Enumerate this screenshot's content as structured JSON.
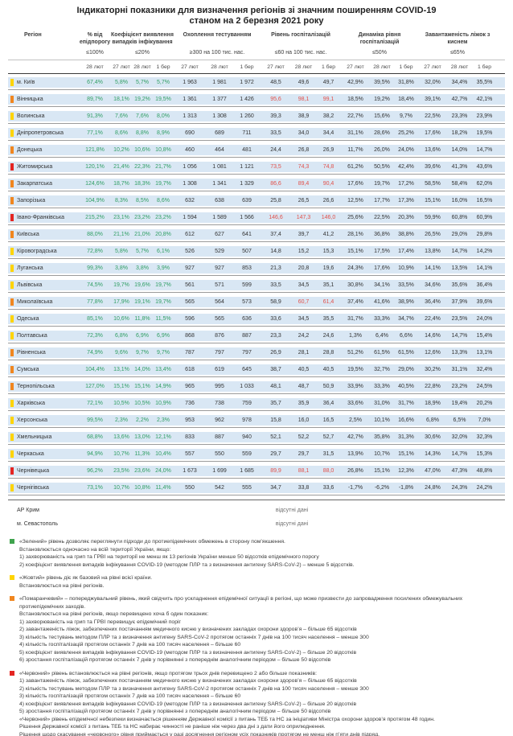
{
  "title": {
    "line1": "Індикаторні показники для визначення регіонів зі значним поширенням COVID-19",
    "line2": "станом на 2 березня 2021 року"
  },
  "colors": {
    "row_band": "#d9e7f4",
    "value_green": "#2f9e63",
    "value_alert_red": "#e2514b",
    "level_yellow": "#ffd400",
    "level_orange": "#f0861f",
    "level_red": "#e42522",
    "level_green": "#3fa34d"
  },
  "table": {
    "region_header": "Регіон",
    "no_data_note": "відсутні дані",
    "groups": [
      {
        "label": "% від епідпорогу",
        "threshold": "≤100%",
        "dates": [
          "28 лют"
        ]
      },
      {
        "label": "Коефіцієнт виявлення випадків інфікування",
        "threshold": "≤20%",
        "dates": [
          "27 лют",
          "28 лют",
          "1 бер"
        ]
      },
      {
        "label": "Охоплення тестуванням",
        "threshold": "≥300 на 100 тис. нас.",
        "dates": [
          "27 лют",
          "28 лют",
          "1 бер"
        ]
      },
      {
        "label": "Рівень госпіталізацій",
        "threshold": "≤60 на 100 тис. нас.",
        "dates": [
          "27 лют",
          "28 лют",
          "1 бер"
        ]
      },
      {
        "label": "Динаміка рівня госпіталізацій",
        "threshold": "≤50%",
        "dates": [
          "27 лют",
          "28 лют",
          "1 бер"
        ]
      },
      {
        "label": "Завантаженість ліжок з киснем",
        "threshold": "≤65%",
        "dates": [
          "27 лют",
          "28 лют",
          "1 бер"
        ]
      }
    ],
    "rows": [
      {
        "region": "м. Київ",
        "level": "yellow",
        "epid": "67,4%",
        "coef": [
          "5,8%",
          "5,7%",
          "5,7%"
        ],
        "tests": [
          "1 963",
          "1 981",
          "1 972"
        ],
        "hosp": [
          "48,5",
          "49,6",
          "49,7"
        ],
        "hosp_alert": [
          false,
          false,
          false
        ],
        "dyn": [
          "42,9%",
          "39,5%",
          "31,8%"
        ],
        "oxy": [
          "32,0%",
          "34,4%",
          "35,5%"
        ]
      },
      {
        "region": "Вінницька",
        "level": "orange",
        "epid": "89,7%",
        "coef": [
          "18,1%",
          "19,2%",
          "19,5%"
        ],
        "tests": [
          "1 361",
          "1 377",
          "1 426"
        ],
        "hosp": [
          "95,6",
          "98,1",
          "99,1"
        ],
        "hosp_alert": [
          true,
          true,
          true
        ],
        "dyn": [
          "18,5%",
          "19,2%",
          "18,4%"
        ],
        "oxy": [
          "39,1%",
          "42,7%",
          "42,1%"
        ]
      },
      {
        "region": "Волинська",
        "level": "yellow",
        "epid": "91,3%",
        "coef": [
          "7,6%",
          "7,6%",
          "8,0%"
        ],
        "tests": [
          "1 313",
          "1 308",
          "1 260"
        ],
        "hosp": [
          "39,3",
          "38,9",
          "38,2"
        ],
        "hosp_alert": [
          false,
          false,
          false
        ],
        "dyn": [
          "22,7%",
          "15,6%",
          "9,7%"
        ],
        "oxy": [
          "22,5%",
          "23,3%",
          "23,9%"
        ]
      },
      {
        "region": "Дніпропетровська",
        "level": "yellow",
        "epid": "77,1%",
        "coef": [
          "8,6%",
          "8,8%",
          "8,9%"
        ],
        "tests": [
          "690",
          "689",
          "711"
        ],
        "hosp": [
          "33,5",
          "34,0",
          "34,4"
        ],
        "hosp_alert": [
          false,
          false,
          false
        ],
        "dyn": [
          "31,1%",
          "28,6%",
          "25,2%"
        ],
        "oxy": [
          "17,6%",
          "18,2%",
          "19,5%"
        ]
      },
      {
        "region": "Донецька",
        "level": "orange",
        "epid": "121,8%",
        "coef": [
          "10,2%",
          "10,6%",
          "10,8%"
        ],
        "tests": [
          "460",
          "464",
          "481"
        ],
        "hosp": [
          "24,4",
          "26,8",
          "26,9"
        ],
        "hosp_alert": [
          false,
          false,
          false
        ],
        "dyn": [
          "11,7%",
          "26,0%",
          "24,0%"
        ],
        "oxy": [
          "13,6%",
          "14,0%",
          "14,7%"
        ]
      },
      {
        "region": "Житомирська",
        "level": "red",
        "epid": "120,1%",
        "coef": [
          "21,4%",
          "22,3%",
          "21,7%"
        ],
        "tests": [
          "1 056",
          "1 081",
          "1 121"
        ],
        "hosp": [
          "73,5",
          "74,3",
          "74,8"
        ],
        "hosp_alert": [
          true,
          true,
          true
        ],
        "dyn": [
          "61,2%",
          "50,5%",
          "42,4%"
        ],
        "oxy": [
          "39,6%",
          "41,3%",
          "43,6%"
        ]
      },
      {
        "region": "Закарпатська",
        "level": "orange",
        "epid": "124,6%",
        "coef": [
          "18,7%",
          "18,3%",
          "19,7%"
        ],
        "tests": [
          "1 308",
          "1 341",
          "1 329"
        ],
        "hosp": [
          "86,6",
          "89,4",
          "90,4"
        ],
        "hosp_alert": [
          true,
          true,
          true
        ],
        "dyn": [
          "17,6%",
          "19,7%",
          "17,2%"
        ],
        "oxy": [
          "58,5%",
          "58,4%",
          "62,0%"
        ]
      },
      {
        "region": "Запорізька",
        "level": "orange",
        "epid": "104,9%",
        "coef": [
          "8,3%",
          "8,5%",
          "8,6%"
        ],
        "tests": [
          "632",
          "638",
          "639"
        ],
        "hosp": [
          "25,8",
          "26,5",
          "26,6"
        ],
        "hosp_alert": [
          false,
          false,
          false
        ],
        "dyn": [
          "12,5%",
          "17,7%",
          "17,3%"
        ],
        "oxy": [
          "15,1%",
          "16,0%",
          "16,5%"
        ]
      },
      {
        "region": "Івано-Франківська",
        "level": "red",
        "epid": "215,2%",
        "coef": [
          "23,1%",
          "23,2%",
          "23,2%"
        ],
        "tests": [
          "1 594",
          "1 589",
          "1 566"
        ],
        "hosp": [
          "146,6",
          "147,3",
          "146,0"
        ],
        "hosp_alert": [
          true,
          true,
          true
        ],
        "dyn": [
          "25,6%",
          "22,5%",
          "20,3%"
        ],
        "oxy": [
          "59,9%",
          "60,8%",
          "60,9%"
        ]
      },
      {
        "region": "Київська",
        "level": "orange",
        "epid": "88,0%",
        "coef": [
          "21,1%",
          "21,0%",
          "20,8%"
        ],
        "tests": [
          "612",
          "627",
          "641"
        ],
        "hosp": [
          "37,4",
          "39,7",
          "41,2"
        ],
        "hosp_alert": [
          false,
          false,
          false
        ],
        "dyn": [
          "28,1%",
          "36,8%",
          "38,8%"
        ],
        "oxy": [
          "26,5%",
          "29,0%",
          "29,8%"
        ]
      },
      {
        "region": "Кіровоградська",
        "level": "yellow",
        "epid": "72,8%",
        "coef": [
          "5,8%",
          "5,7%",
          "6,1%"
        ],
        "tests": [
          "526",
          "529",
          "507"
        ],
        "hosp": [
          "14,8",
          "15,2",
          "15,3"
        ],
        "hosp_alert": [
          false,
          false,
          false
        ],
        "dyn": [
          "15,1%",
          "17,5%",
          "17,4%"
        ],
        "oxy": [
          "13,8%",
          "14,7%",
          "14,2%"
        ]
      },
      {
        "region": "Луганська",
        "level": "yellow",
        "epid": "99,3%",
        "coef": [
          "3,8%",
          "3,8%",
          "3,9%"
        ],
        "tests": [
          "927",
          "927",
          "853"
        ],
        "hosp": [
          "21,3",
          "20,8",
          "19,6"
        ],
        "hosp_alert": [
          false,
          false,
          false
        ],
        "dyn": [
          "24,3%",
          "17,6%",
          "10,9%"
        ],
        "oxy": [
          "14,1%",
          "13,5%",
          "14,1%"
        ]
      },
      {
        "region": "Львівська",
        "level": "yellow",
        "epid": "74,5%",
        "coef": [
          "19,7%",
          "19,6%",
          "19,7%"
        ],
        "tests": [
          "561",
          "571",
          "599"
        ],
        "hosp": [
          "33,5",
          "34,5",
          "35,1"
        ],
        "hosp_alert": [
          false,
          false,
          false
        ],
        "dyn": [
          "30,8%",
          "34,1%",
          "33,5%"
        ],
        "oxy": [
          "34,6%",
          "35,6%",
          "36,4%"
        ]
      },
      {
        "region": "Миколаївська",
        "level": "orange",
        "epid": "77,8%",
        "coef": [
          "17,9%",
          "19,1%",
          "19,7%"
        ],
        "tests": [
          "565",
          "564",
          "573"
        ],
        "hosp": [
          "58,9",
          "60,7",
          "61,4"
        ],
        "hosp_alert": [
          false,
          true,
          true
        ],
        "dyn": [
          "37,4%",
          "41,6%",
          "38,9%"
        ],
        "oxy": [
          "36,4%",
          "37,9%",
          "39,6%"
        ]
      },
      {
        "region": "Одеська",
        "level": "yellow",
        "epid": "85,1%",
        "coef": [
          "10,6%",
          "11,8%",
          "11,5%"
        ],
        "tests": [
          "596",
          "565",
          "636"
        ],
        "hosp": [
          "33,6",
          "34,5",
          "35,5"
        ],
        "hosp_alert": [
          false,
          false,
          false
        ],
        "dyn": [
          "31,7%",
          "33,3%",
          "34,7%"
        ],
        "oxy": [
          "22,4%",
          "23,5%",
          "24,0%"
        ]
      },
      {
        "region": "Полтавська",
        "level": "yellow",
        "epid": "72,3%",
        "coef": [
          "6,8%",
          "6,9%",
          "6,9%"
        ],
        "tests": [
          "868",
          "876",
          "887"
        ],
        "hosp": [
          "23,3",
          "24,2",
          "24,6"
        ],
        "hosp_alert": [
          false,
          false,
          false
        ],
        "dyn": [
          "1,3%",
          "6,4%",
          "6,6%"
        ],
        "oxy": [
          "14,6%",
          "14,7%",
          "15,4%"
        ]
      },
      {
        "region": "Рівненська",
        "level": "orange",
        "epid": "74,9%",
        "coef": [
          "9,6%",
          "9,7%",
          "9,7%"
        ],
        "tests": [
          "787",
          "797",
          "797"
        ],
        "hosp": [
          "26,9",
          "28,1",
          "28,8"
        ],
        "hosp_alert": [
          false,
          false,
          false
        ],
        "dyn": [
          "51,2%",
          "61,5%",
          "61,5%"
        ],
        "oxy": [
          "12,6%",
          "13,3%",
          "13,1%"
        ]
      },
      {
        "region": "Сумська",
        "level": "orange",
        "epid": "104,4%",
        "coef": [
          "13,1%",
          "14,0%",
          "13,4%"
        ],
        "tests": [
          "618",
          "619",
          "645"
        ],
        "hosp": [
          "38,7",
          "40,5",
          "40,5"
        ],
        "hosp_alert": [
          false,
          false,
          false
        ],
        "dyn": [
          "19,5%",
          "32,7%",
          "29,0%"
        ],
        "oxy": [
          "30,2%",
          "31,1%",
          "32,4%"
        ]
      },
      {
        "region": "Тернопільська",
        "level": "orange",
        "epid": "127,0%",
        "coef": [
          "15,1%",
          "15,1%",
          "14,9%"
        ],
        "tests": [
          "965",
          "995",
          "1 033"
        ],
        "hosp": [
          "48,1",
          "48,7",
          "50,9"
        ],
        "hosp_alert": [
          false,
          false,
          false
        ],
        "dyn": [
          "33,9%",
          "33,3%",
          "40,5%"
        ],
        "oxy": [
          "22,8%",
          "23,2%",
          "24,5%"
        ]
      },
      {
        "region": "Харківська",
        "level": "yellow",
        "epid": "72,1%",
        "coef": [
          "10,5%",
          "10,5%",
          "10,9%"
        ],
        "tests": [
          "736",
          "738",
          "759"
        ],
        "hosp": [
          "35,7",
          "35,9",
          "36,4"
        ],
        "hosp_alert": [
          false,
          false,
          false
        ],
        "dyn": [
          "33,6%",
          "31,0%",
          "31,7%"
        ],
        "oxy": [
          "18,9%",
          "19,4%",
          "20,2%"
        ]
      },
      {
        "region": "Херсонська",
        "level": "yellow",
        "epid": "99,5%",
        "coef": [
          "2,3%",
          "2,2%",
          "2,3%"
        ],
        "tests": [
          "953",
          "962",
          "978"
        ],
        "hosp": [
          "15,8",
          "16,0",
          "16,5"
        ],
        "hosp_alert": [
          false,
          false,
          false
        ],
        "dyn": [
          "2,5%",
          "10,1%",
          "16,6%"
        ],
        "oxy": [
          "6,8%",
          "6,5%",
          "7,0%"
        ]
      },
      {
        "region": "Хмельницька",
        "level": "yellow",
        "epid": "68,8%",
        "coef": [
          "13,6%",
          "13,0%",
          "12,1%"
        ],
        "tests": [
          "833",
          "887",
          "940"
        ],
        "hosp": [
          "52,1",
          "52,2",
          "52,7"
        ],
        "hosp_alert": [
          false,
          false,
          false
        ],
        "dyn": [
          "42,7%",
          "35,8%",
          "31,3%"
        ],
        "oxy": [
          "30,6%",
          "32,0%",
          "32,3%"
        ]
      },
      {
        "region": "Черкаська",
        "level": "yellow",
        "epid": "94,9%",
        "coef": [
          "10,7%",
          "11,3%",
          "10,4%"
        ],
        "tests": [
          "557",
          "550",
          "559"
        ],
        "hosp": [
          "29,7",
          "29,7",
          "31,5"
        ],
        "hosp_alert": [
          false,
          false,
          false
        ],
        "dyn": [
          "13,9%",
          "10,7%",
          "15,1%"
        ],
        "oxy": [
          "14,3%",
          "14,7%",
          "15,3%"
        ]
      },
      {
        "region": "Чернівецька",
        "level": "red",
        "epid": "96,2%",
        "coef": [
          "23,5%",
          "23,6%",
          "24,0%"
        ],
        "tests": [
          "1 673",
          "1 699",
          "1 685"
        ],
        "hosp": [
          "89,9",
          "88,1",
          "88,0"
        ],
        "hosp_alert": [
          true,
          true,
          true
        ],
        "dyn": [
          "26,8%",
          "15,1%",
          "12,3%"
        ],
        "oxy": [
          "47,0%",
          "47,3%",
          "48,8%"
        ]
      },
      {
        "region": "Чернігівська",
        "level": "yellow",
        "epid": "73,1%",
        "coef": [
          "10,7%",
          "10,8%",
          "11,4%"
        ],
        "tests": [
          "550",
          "542",
          "555"
        ],
        "hosp": [
          "34,7",
          "33,8",
          "33,6"
        ],
        "hosp_alert": [
          false,
          false,
          false
        ],
        "dyn": [
          "-1,7%",
          "-6,2%",
          "-1,8%"
        ],
        "oxy": [
          "24,8%",
          "24,3%",
          "24,2%"
        ]
      }
    ],
    "no_data_rows": [
      {
        "region": "АР Крим",
        "note": "відсутні дані"
      },
      {
        "region": "м. Севастополь",
        "note": "відсутні дані"
      }
    ]
  },
  "legend": {
    "blocks": [
      {
        "color": "green",
        "lines": [
          "«Зелений» рівень дозволяє переглянути підходи до протиепідемічних обмежень в сторону пом’якшення.",
          "Встановлюється одночасно на всій території України, якщо:",
          "1) захворюваність на грип та ГРВІ на території не менш як 13 регіонів України менше 50 відсотків епідемічного порогу",
          "2) коефіцієнт виявлення випадків інфікування COVID-19 (методом ПЛР та з визначення антигену SARS-CoV-2) – менше 5 відсотків."
        ]
      },
      {
        "color": "yellow",
        "lines": [
          "«Жовтий» рівень діє як базовий на рівні всієї країни.",
          "Встановлюється на рівні регіонів."
        ]
      },
      {
        "color": "orange",
        "lines": [
          "«Помаранчевий» – попереджувальний рівень, який свідчить про ускладнення епідемічної ситуації в регіоні, що може призвести до запровадження посилених обмежувальних протиепідемічних заходів.",
          "Встановлюється на рівні регіонів, якщо перевищено хоча б один показник:",
          "1) захворюваність на грип та ГРВІ перевищує епідемічний поріг",
          "2) завантаженість ліжок, забезпечених постачанням медичного кисню у визначених закладах охорони здоров’я – більше 65 відсотків",
          "3) кількість тестувань методом ПЛР та з визначення антигену SARS-CoV-2 протягом останніх 7 днів на 100 тисяч населення – менше 300",
          "4) кількість госпіталізацій протягом останніх 7 днів на 100 тисяч населення – більше 60",
          "5) коефіцієнт виявлення випадків інфікування COVID-19 (методом ПЛР та з визначення антигену SARS-CoV-2) – більше 20 відсотків",
          "6) зростання госпіталізацій протягом останніх 7 днів у порівнянні з попереднім аналогічним періодом – більше 50 відсотків"
        ]
      },
      {
        "color": "red",
        "lines": [
          "«Червоний» рівень встановлюється на рівні регіонів, якщо протягом трьох днів перевищено 2 або більше показників:",
          "1) завантаженість ліжок, забезпечених постачанням медичного кисню у визначених закладах охорони здоров’я – більше 65 відсотків",
          "2) кількість тестувань методом ПЛР та з визначення антигену SARS-CoV-2 протягом останніх 7 днів на 100 тисяч населення – менше 300",
          "3) кількість госпіталізацій протягом останніх 7 днів на 100 тисяч населення – більше 60",
          "4) коефіцієнт виявлення випадків інфікування COVID-19 (методом ПЛР та з визначення антигену SARS-CoV-2) – більше 20 відсотків",
          "5) зростання госпіталізацій протягом останніх 7 днів у порівнянні з попереднім аналогічним періодом – більше 50 відсотків",
          "«Червоний» рівень епідемічної небезпеки визначається рішенням Державної комісії з питань ТЕБ та НС за ініціативи Міністра охорони здоров’я протягом 48 годин.",
          "Рішення Державної комісії з питань ТЕБ та НС набирає чинності не раніше ніж через два дні з дати його оприлюднення.",
          "Рішення щодо скасування «червоного» рівня приймається у разі досягнення регіоном усіх показників протягом не менш ніж п’яти днів підряд."
        ]
      }
    ]
  }
}
